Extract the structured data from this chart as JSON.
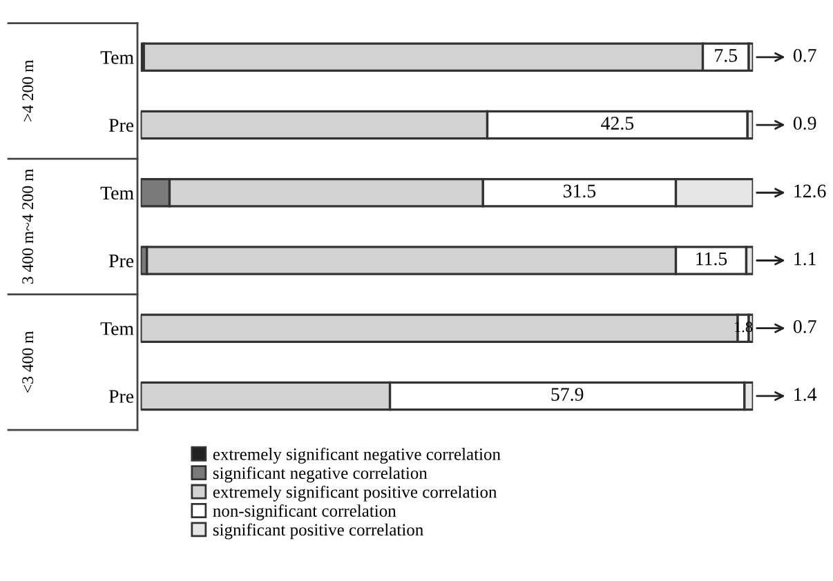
{
  "chart_data": {
    "type": "bar",
    "orientation": "horizontal",
    "stacked": true,
    "categories": [
      "Tem",
      "Pre",
      "Tem",
      "Pre",
      "Tem",
      "Pre"
    ],
    "annotations": [
      ">4 200 m",
      "3 400 m~4 200 m",
      "<3 400 m"
    ],
    "xlim": [
      0,
      100
    ],
    "tick_labels": "y",
    "grid": false,
    "legend": "bottom",
    "series": [
      {
        "name": "extremely significant negative correlation",
        "color": "#222222",
        "values": [
          0.5,
          0,
          0,
          0,
          0,
          0
        ]
      },
      {
        "name": "significant negative correlation",
        "color": "#7a7a7a",
        "values": [
          0,
          0,
          4.7,
          1.0,
          0,
          0
        ]
      },
      {
        "name": "extremely significant positive correlation",
        "color": "#d2d2d2",
        "values": [
          91.3,
          56.6,
          51.2,
          86.4,
          97.5,
          40.7
        ]
      },
      {
        "name": "non-significant correlation",
        "color": "#ffffff",
        "values": [
          7.5,
          42.5,
          31.5,
          11.5,
          1.8,
          57.9
        ],
        "value_labels": [
          "7.5",
          "42.5",
          "31.5",
          "11.5",
          "1.8",
          "57.9"
        ]
      },
      {
        "name": "significant positive correlation",
        "color": "#e6e6e6",
        "values": [
          0.7,
          0.9,
          12.6,
          1.1,
          0.7,
          1.4
        ],
        "value_labels": [
          "0.7",
          "0.9",
          "12.6",
          "1.1",
          "0.7",
          "1.4"
        ]
      }
    ]
  }
}
